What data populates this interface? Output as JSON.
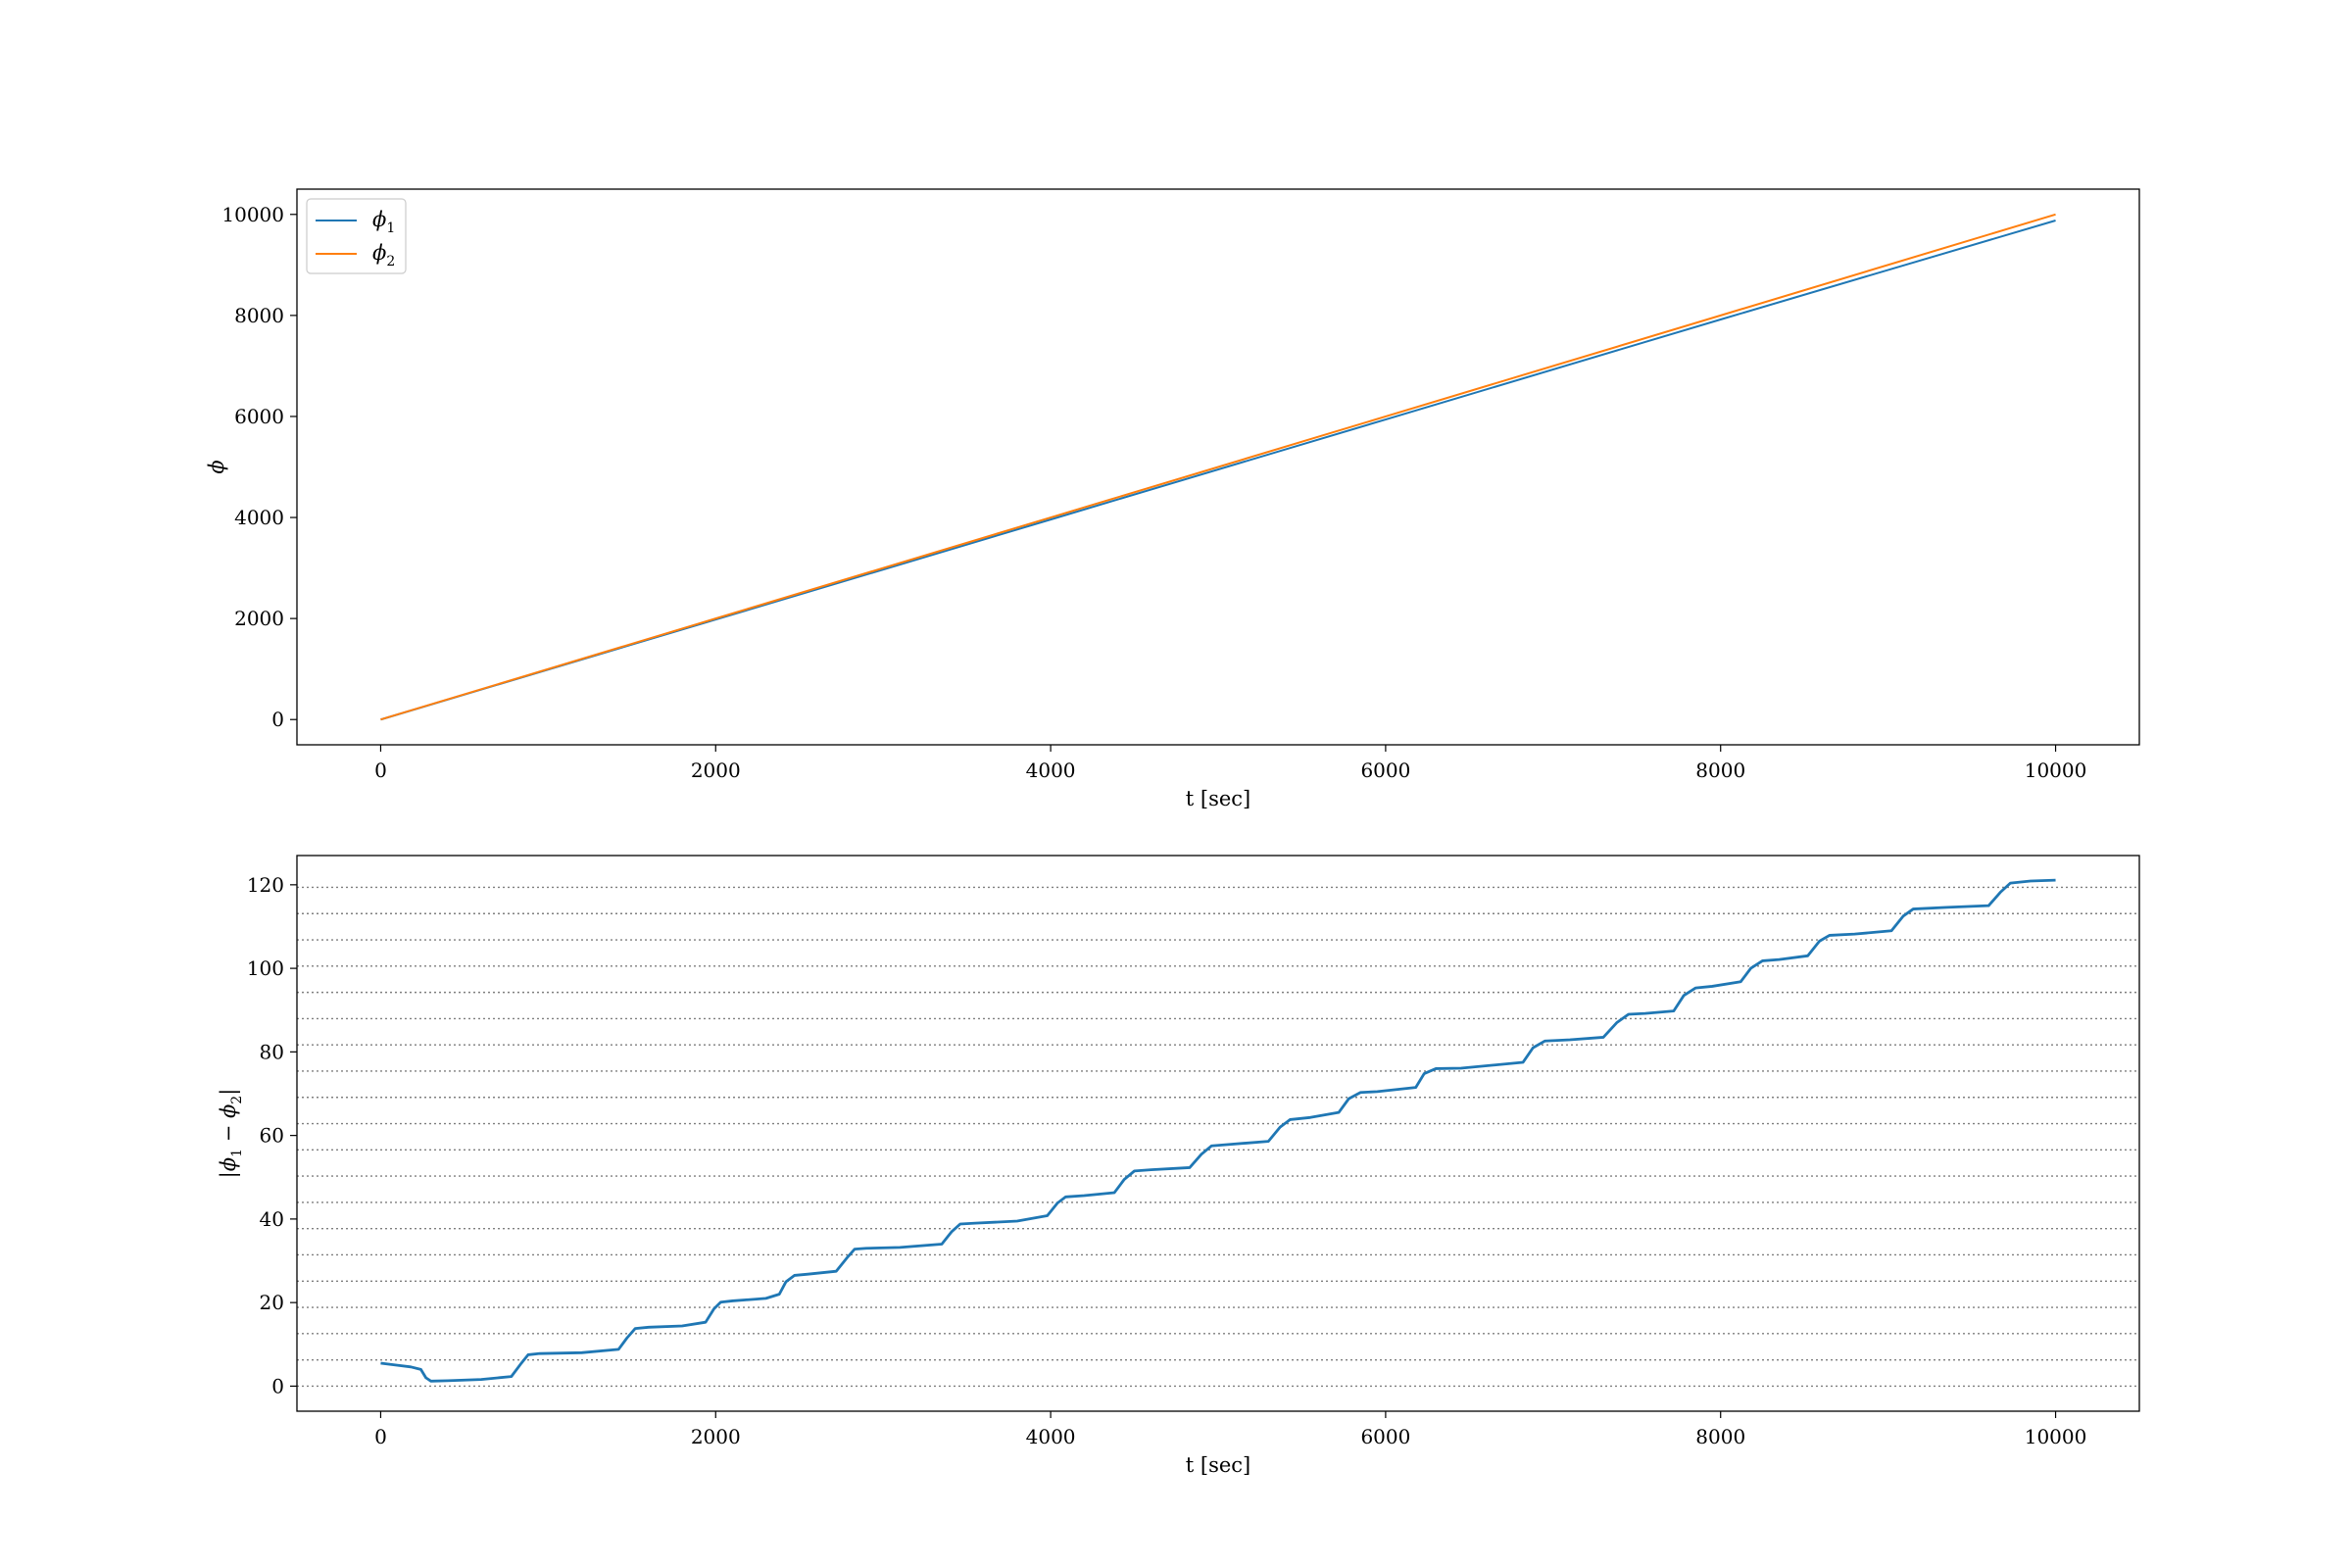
{
  "colors": {
    "phi1": "#1f77b4",
    "phi2": "#ff7f0e",
    "ref_lines": "#7f7f7f",
    "axes": "#000000"
  },
  "chart_data": [
    {
      "type": "line",
      "xlabel": "t [sec]",
      "ylabel": "ϕ",
      "xlim": [
        -500,
        10500
      ],
      "ylim": [
        -500,
        10500
      ],
      "xticks": [
        0,
        2000,
        4000,
        6000,
        8000,
        10000
      ],
      "yticks": [
        0,
        2000,
        4000,
        6000,
        8000,
        10000
      ],
      "x_tick_labels": [
        "0",
        "2000",
        "4000",
        "6000",
        "8000",
        "10000"
      ],
      "y_tick_labels": [
        "0",
        "2000",
        "4000",
        "6000",
        "8000",
        "10000"
      ],
      "grid": false,
      "legend": {
        "placement": "top-left",
        "entries": [
          {
            "label": "ϕ",
            "sub": "1",
            "color": "#1f77b4"
          },
          {
            "label": "ϕ",
            "sub": "2",
            "color": "#ff7f0e"
          }
        ]
      },
      "series": [
        {
          "name": "ϕ1",
          "color": "#1f77b4",
          "x": [
            0,
            2000,
            4000,
            6000,
            8000,
            10000
          ],
          "y": [
            0,
            1980,
            3960,
            5940,
            7920,
            9879
          ]
        },
        {
          "name": "ϕ2",
          "color": "#ff7f0e",
          "x": [
            0,
            2000,
            4000,
            6000,
            8000,
            10000
          ],
          "y": [
            0,
            2000,
            4000,
            6000,
            8000,
            10000
          ]
        }
      ]
    },
    {
      "type": "line",
      "xlabel": "t [sec]",
      "ylabel": "|ϕ1 − ϕ2|",
      "ylabel_parts": {
        "open": "|",
        "a": "ϕ",
        "a_sub": "1",
        "op": " − ",
        "b": "ϕ",
        "b_sub": "2",
        "close": "|"
      },
      "xlim": [
        -500,
        10500
      ],
      "ylim": [
        -6,
        127
      ],
      "xticks": [
        0,
        2000,
        4000,
        6000,
        8000,
        10000
      ],
      "yticks": [
        0,
        20,
        40,
        60,
        80,
        100,
        120
      ],
      "x_tick_labels": [
        "0",
        "2000",
        "4000",
        "6000",
        "8000",
        "10000"
      ],
      "y_tick_labels": [
        "0",
        "20",
        "40",
        "60",
        "80",
        "100",
        "120"
      ],
      "grid": false,
      "reference_lines": {
        "style": "dotted",
        "y": [
          0,
          6.28,
          12.57,
          18.85,
          25.13,
          31.42,
          37.7,
          43.98,
          50.27,
          56.55,
          62.83,
          69.12,
          75.4,
          81.68,
          87.96,
          94.25,
          100.53,
          106.81,
          113.1,
          119.38
        ]
      },
      "series": [
        {
          "name": "|ϕ1 − ϕ2|",
          "color": "#1f77b4",
          "x": [
            0,
            100,
            180,
            240,
            270,
            300,
            400,
            600,
            780,
            840,
            880,
            950,
            1200,
            1420,
            1470,
            1520,
            1600,
            1800,
            1940,
            1990,
            2030,
            2100,
            2300,
            2380,
            2420,
            2470,
            2550,
            2720,
            2790,
            2830,
            2900,
            3100,
            3350,
            3410,
            3460,
            3550,
            3800,
            3980,
            4040,
            4090,
            4200,
            4380,
            4440,
            4500,
            4600,
            4830,
            4900,
            4960,
            5050,
            5300,
            5370,
            5430,
            5550,
            5720,
            5780,
            5850,
            5950,
            6180,
            6230,
            6300,
            6450,
            6820,
            6880,
            6950,
            7100,
            7300,
            7380,
            7450,
            7550,
            7720,
            7780,
            7850,
            7950,
            8120,
            8180,
            8250,
            8350,
            8520,
            8590,
            8650,
            8800,
            9020,
            9090,
            9150,
            9350,
            9600,
            9670,
            9730,
            9850,
            10000
          ],
          "y": [
            5.5,
            5.0,
            4.6,
            4.0,
            2.0,
            1.2,
            1.3,
            1.6,
            2.3,
            5.5,
            7.5,
            7.8,
            8.0,
            8.8,
            11.5,
            13.8,
            14.1,
            14.4,
            15.3,
            18.5,
            20.1,
            20.4,
            21.0,
            22.0,
            25.0,
            26.5,
            26.8,
            27.5,
            31.0,
            32.8,
            33.0,
            33.2,
            34.0,
            37.0,
            38.8,
            39.0,
            39.5,
            40.8,
            43.8,
            45.3,
            45.6,
            46.3,
            49.5,
            51.5,
            51.8,
            52.3,
            55.5,
            57.5,
            57.8,
            58.6,
            62.0,
            63.8,
            64.3,
            65.5,
            68.8,
            70.3,
            70.5,
            71.5,
            74.8,
            76.0,
            76.1,
            77.5,
            81.0,
            82.6,
            82.9,
            83.5,
            87.0,
            89.0,
            89.2,
            89.8,
            93.5,
            95.3,
            95.7,
            96.8,
            100.0,
            101.8,
            102.1,
            103.0,
            106.5,
            107.9,
            108.2,
            109.0,
            112.5,
            114.2,
            114.6,
            115.0,
            118.2,
            120.4,
            120.9,
            121.1
          ]
        }
      ]
    }
  ]
}
